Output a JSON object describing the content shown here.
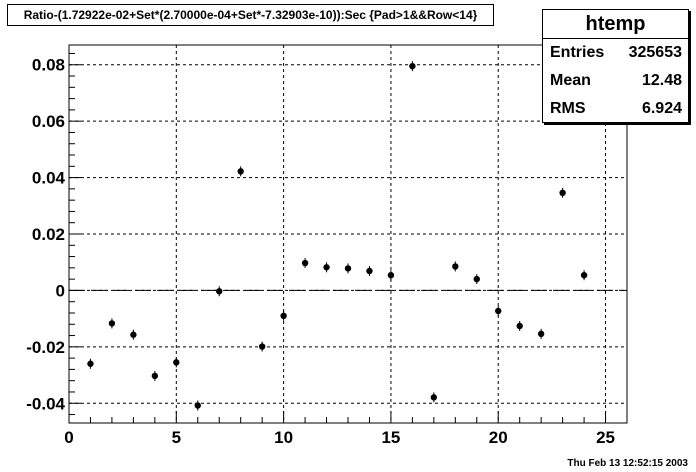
{
  "title": "Ratio-(1.72922e-02+Set*(2.70000e-04+Set*-7.32903e-10)):Sec {Pad>1&&Row<14}",
  "stats": {
    "name": "htemp",
    "entries_label": "Entries",
    "entries_value": "325653",
    "mean_label": "Mean",
    "mean_value": "12.48",
    "rms_label": "RMS",
    "rms_value": "6.924"
  },
  "footer": "Thu Feb 13 12:52:15 2003",
  "chart_data": {
    "type": "scatter",
    "xlim": [
      0,
      26
    ],
    "ylim": [
      -0.047,
      0.087
    ],
    "grid": true,
    "xticks": [
      0,
      5,
      10,
      15,
      20,
      25
    ],
    "yticks": [
      -0.04,
      -0.02,
      0,
      0.02,
      0.04,
      0.06,
      0.08
    ],
    "ytick_labels": [
      "-0.04",
      "-0.02",
      "0",
      "0.02",
      "0.04",
      "0.06",
      "0.08"
    ],
    "zero_line": true,
    "x": [
      1,
      2,
      3,
      4,
      5,
      6,
      7,
      8,
      9,
      10,
      11,
      12,
      13,
      14,
      15,
      16,
      17,
      18,
      19,
      20,
      21,
      22,
      23,
      24
    ],
    "y": [
      -0.026,
      -0.0117,
      -0.0157,
      -0.0303,
      -0.0255,
      -0.0408,
      -0.0003,
      0.0422,
      -0.0199,
      -0.009,
      0.0097,
      0.0082,
      0.0078,
      0.0069,
      0.0054,
      0.0795,
      -0.0379,
      0.0085,
      0.004,
      -0.0073,
      -0.0126,
      -0.0154,
      0.0346,
      0.0054
    ]
  }
}
